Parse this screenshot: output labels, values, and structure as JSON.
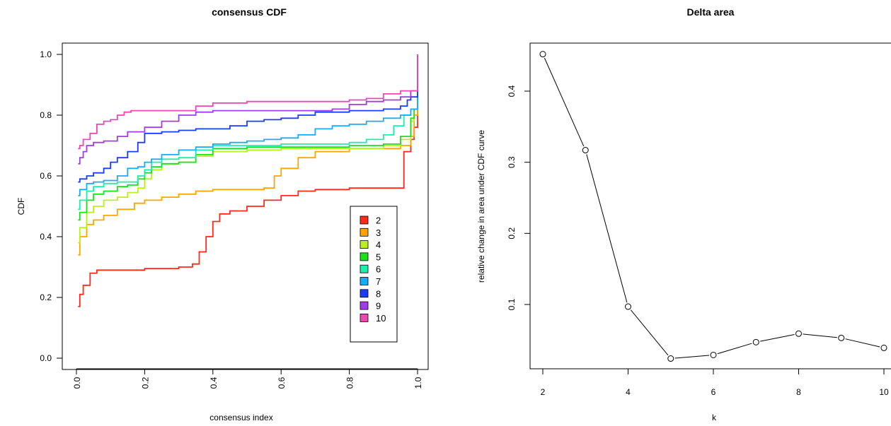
{
  "chart_data": [
    {
      "type": "line",
      "title": "consensus CDF",
      "xlabel": "consensus index",
      "ylabel": "CDF",
      "xlim": [
        0,
        1
      ],
      "ylim": [
        0,
        1
      ],
      "x_ticks": [
        "0.0",
        "0.2",
        "0.4",
        "0.6",
        "0.8",
        "1.0"
      ],
      "y_ticks": [
        "0.0",
        "0.2",
        "0.4",
        "0.6",
        "0.8",
        "1.0"
      ],
      "legend": {
        "position": "bottom-right",
        "entries": [
          "2",
          "3",
          "4",
          "5",
          "6",
          "7",
          "8",
          "9",
          "10"
        ]
      },
      "series": [
        {
          "name": "2",
          "color": "#FF2A1A",
          "x": [
            0.005,
            0.01,
            0.02,
            0.04,
            0.06,
            0.08,
            0.15,
            0.2,
            0.3,
            0.34,
            0.36,
            0.38,
            0.4,
            0.42,
            0.45,
            0.5,
            0.55,
            0.6,
            0.65,
            0.7,
            0.8,
            0.9,
            0.94,
            0.96,
            0.98,
            0.99,
            1.0
          ],
          "y": [
            0.17,
            0.21,
            0.24,
            0.28,
            0.29,
            0.29,
            0.29,
            0.295,
            0.3,
            0.31,
            0.35,
            0.4,
            0.45,
            0.475,
            0.485,
            0.5,
            0.52,
            0.535,
            0.55,
            0.555,
            0.56,
            0.56,
            0.56,
            0.68,
            0.72,
            0.76,
            1.0
          ]
        },
        {
          "name": "3",
          "color": "#FFA500",
          "x": [
            0.005,
            0.01,
            0.03,
            0.05,
            0.08,
            0.12,
            0.17,
            0.2,
            0.25,
            0.3,
            0.35,
            0.4,
            0.45,
            0.5,
            0.55,
            0.58,
            0.6,
            0.65,
            0.7,
            0.8,
            0.9,
            0.95,
            0.98,
            0.99,
            1.0
          ],
          "y": [
            0.34,
            0.4,
            0.44,
            0.455,
            0.47,
            0.49,
            0.51,
            0.52,
            0.53,
            0.54,
            0.55,
            0.555,
            0.555,
            0.555,
            0.56,
            0.6,
            0.625,
            0.66,
            0.68,
            0.69,
            0.69,
            0.7,
            0.73,
            0.8,
            1.0
          ]
        },
        {
          "name": "4",
          "color": "#B9F01A",
          "x": [
            0.005,
            0.01,
            0.03,
            0.05,
            0.08,
            0.12,
            0.15,
            0.18,
            0.2,
            0.22,
            0.25,
            0.3,
            0.35,
            0.4,
            0.5,
            0.6,
            0.7,
            0.8,
            0.9,
            0.95,
            0.98,
            0.99,
            1.0
          ],
          "y": [
            0.38,
            0.43,
            0.48,
            0.5,
            0.52,
            0.53,
            0.545,
            0.56,
            0.59,
            0.62,
            0.64,
            0.645,
            0.665,
            0.68,
            0.685,
            0.69,
            0.69,
            0.69,
            0.7,
            0.72,
            0.78,
            0.82,
            1.0
          ]
        },
        {
          "name": "5",
          "color": "#1AE11A",
          "x": [
            0.005,
            0.01,
            0.03,
            0.05,
            0.08,
            0.12,
            0.15,
            0.18,
            0.2,
            0.22,
            0.25,
            0.3,
            0.35,
            0.4,
            0.5,
            0.6,
            0.7,
            0.8,
            0.9,
            0.95,
            0.98,
            0.99,
            1.0
          ],
          "y": [
            0.455,
            0.48,
            0.52,
            0.54,
            0.55,
            0.565,
            0.57,
            0.59,
            0.61,
            0.63,
            0.64,
            0.645,
            0.67,
            0.69,
            0.695,
            0.695,
            0.695,
            0.7,
            0.705,
            0.73,
            0.79,
            0.82,
            1.0
          ]
        },
        {
          "name": "6",
          "color": "#1AF0AA",
          "x": [
            0.005,
            0.01,
            0.03,
            0.05,
            0.08,
            0.12,
            0.15,
            0.18,
            0.2,
            0.22,
            0.25,
            0.3,
            0.35,
            0.4,
            0.5,
            0.6,
            0.7,
            0.8,
            0.85,
            0.9,
            0.93,
            0.96,
            0.98,
            1.0
          ],
          "y": [
            0.49,
            0.52,
            0.55,
            0.565,
            0.575,
            0.58,
            0.58,
            0.6,
            0.62,
            0.645,
            0.655,
            0.66,
            0.685,
            0.7,
            0.7,
            0.705,
            0.705,
            0.71,
            0.72,
            0.735,
            0.765,
            0.8,
            0.82,
            1.0
          ]
        },
        {
          "name": "7",
          "color": "#1AAAFF",
          "x": [
            0.005,
            0.01,
            0.03,
            0.05,
            0.08,
            0.12,
            0.15,
            0.18,
            0.2,
            0.22,
            0.25,
            0.3,
            0.35,
            0.4,
            0.45,
            0.5,
            0.55,
            0.6,
            0.65,
            0.7,
            0.75,
            0.8,
            0.85,
            0.9,
            0.95,
            0.98,
            1.0
          ],
          "y": [
            0.535,
            0.555,
            0.575,
            0.58,
            0.585,
            0.6,
            0.625,
            0.63,
            0.645,
            0.655,
            0.67,
            0.685,
            0.695,
            0.705,
            0.71,
            0.715,
            0.72,
            0.725,
            0.735,
            0.755,
            0.765,
            0.77,
            0.78,
            0.79,
            0.8,
            0.82,
            1.0
          ]
        },
        {
          "name": "8",
          "color": "#1A3CFF",
          "x": [
            0.005,
            0.01,
            0.03,
            0.05,
            0.08,
            0.1,
            0.12,
            0.15,
            0.18,
            0.2,
            0.25,
            0.3,
            0.35,
            0.4,
            0.45,
            0.5,
            0.55,
            0.6,
            0.65,
            0.7,
            0.8,
            0.9,
            0.95,
            0.97,
            0.98,
            1.0
          ],
          "y": [
            0.58,
            0.59,
            0.6,
            0.61,
            0.625,
            0.645,
            0.66,
            0.68,
            0.71,
            0.74,
            0.745,
            0.75,
            0.755,
            0.755,
            0.765,
            0.78,
            0.785,
            0.79,
            0.8,
            0.81,
            0.815,
            0.82,
            0.83,
            0.85,
            0.86,
            1.0
          ]
        },
        {
          "name": "9",
          "color": "#A03CF0",
          "x": [
            0.005,
            0.01,
            0.02,
            0.03,
            0.05,
            0.08,
            0.12,
            0.15,
            0.2,
            0.25,
            0.3,
            0.35,
            0.4,
            0.5,
            0.6,
            0.7,
            0.75,
            0.8,
            0.85,
            0.9,
            0.95,
            0.98,
            1.0
          ],
          "y": [
            0.64,
            0.66,
            0.68,
            0.7,
            0.71,
            0.715,
            0.73,
            0.745,
            0.76,
            0.78,
            0.8,
            0.81,
            0.815,
            0.815,
            0.815,
            0.815,
            0.82,
            0.835,
            0.845,
            0.85,
            0.86,
            0.88,
            1.0
          ]
        },
        {
          "name": "10",
          "color": "#F046B4",
          "x": [
            0.005,
            0.01,
            0.02,
            0.04,
            0.06,
            0.08,
            0.1,
            0.12,
            0.14,
            0.16,
            0.2,
            0.3,
            0.35,
            0.4,
            0.5,
            0.6,
            0.7,
            0.8,
            0.85,
            0.9,
            0.95,
            0.98,
            1.0
          ],
          "y": [
            0.69,
            0.7,
            0.72,
            0.74,
            0.77,
            0.78,
            0.785,
            0.8,
            0.81,
            0.815,
            0.815,
            0.815,
            0.83,
            0.84,
            0.845,
            0.845,
            0.845,
            0.85,
            0.855,
            0.87,
            0.88,
            0.88,
            1.0
          ]
        }
      ]
    },
    {
      "type": "line",
      "title": "Delta area",
      "xlabel": "k",
      "ylabel": "relative change in area under CDF curve",
      "x_ticks": [
        "2",
        "4",
        "6",
        "8",
        "10"
      ],
      "y_ticks": [
        "0.1",
        "0.2",
        "0.3",
        "0.4"
      ],
      "series": [
        {
          "color": "#000000",
          "x": [
            2,
            3,
            4,
            5,
            6,
            7,
            8,
            9,
            10
          ],
          "y": [
            0.452,
            0.317,
            0.097,
            0.024,
            0.029,
            0.047,
            0.059,
            0.053,
            0.039
          ]
        }
      ]
    }
  ]
}
